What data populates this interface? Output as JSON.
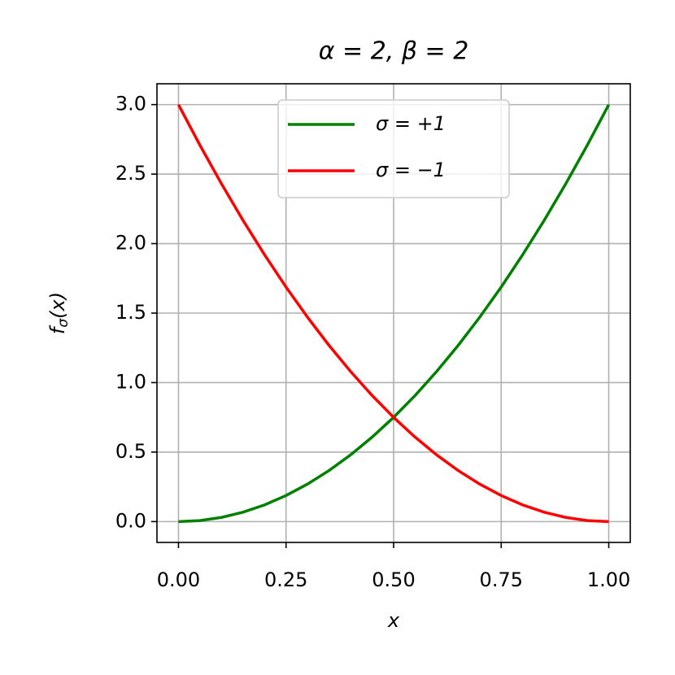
{
  "chart_data": {
    "type": "line",
    "title": "α = 2, β = 2",
    "x_label": "x",
    "y_label": [
      "f",
      "σ",
      "(x)"
    ],
    "x": [
      0,
      0.05,
      0.1,
      0.15,
      0.2,
      0.25,
      0.3,
      0.35,
      0.4,
      0.45,
      0.5,
      0.55,
      0.6,
      0.65,
      0.7,
      0.75,
      0.8,
      0.85,
      0.9,
      0.95,
      1
    ],
    "series": [
      {
        "name": "σ = +1",
        "color": "#008000",
        "values": [
          0,
          0.0075,
          0.03,
          0.0675,
          0.12,
          0.1875,
          0.27,
          0.3675,
          0.48,
          0.6075,
          0.75,
          0.9075,
          1.08,
          1.2675,
          1.47,
          1.6875,
          1.92,
          2.1675,
          2.43,
          2.7075,
          3
        ]
      },
      {
        "name": "σ = −1",
        "color": "#ff0000",
        "values": [
          3,
          2.7075,
          2.43,
          2.1675,
          1.92,
          1.6875,
          1.47,
          1.2675,
          1.08,
          0.9075,
          0.75,
          0.6075,
          0.48,
          0.3675,
          0.27,
          0.1875,
          0.12,
          0.0675,
          0.03,
          0.0075,
          0
        ]
      }
    ],
    "xlim": [
      -0.05,
      1.05
    ],
    "ylim": [
      -0.15,
      3.15
    ],
    "xticks": [
      {
        "value": 0,
        "label": "0.00"
      },
      0.25,
      {
        "value": 0.5,
        "label": "0.50"
      },
      0.75,
      {
        "value": 1,
        "label": "1.00"
      }
    ],
    "yticks": [
      {
        "value": 0,
        "label": "0.0"
      },
      0.5,
      {
        "value": 1,
        "label": "1.0"
      },
      1.5,
      {
        "value": 2,
        "label": "2.0"
      },
      2.5,
      {
        "value": 3,
        "label": "3.0"
      }
    ],
    "grid": true,
    "legend": "upper center"
  }
}
